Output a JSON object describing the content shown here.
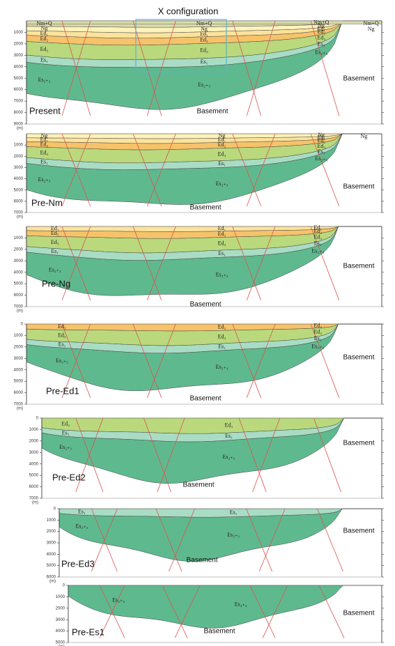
{
  "title": "X configuration",
  "panels": [
    {
      "label": "Present",
      "ylim": [
        0,
        9000
      ],
      "depth_ticks": [
        1000,
        2000,
        3000,
        4000,
        5000,
        6000,
        7000,
        8000,
        9000
      ],
      "depth_unit": "(m)",
      "label_columns": [
        [
          "Nm+Q",
          "Ng",
          "Ed₁",
          "Ed₂",
          "Ed₃",
          "Es₁",
          "Es₂₊₃"
        ],
        [
          "Nm+Q",
          "Ng",
          "Ed₁",
          "Ed₂",
          "Ed₃",
          "Es₁",
          "Es₂₊₃"
        ],
        [
          "Nm+Q",
          "Ng",
          "Ed₁",
          "Ed₂",
          "Ed₃",
          "Es₁",
          "Es₂₊₃"
        ],
        [
          "Nm+Q",
          "Ng"
        ]
      ],
      "basement": [
        "Basement",
        "Basement"
      ]
    },
    {
      "label": "Pre-Nm",
      "ylim": [
        0,
        7000
      ],
      "depth_ticks": [
        1000,
        2000,
        3000,
        4000,
        5000,
        6000,
        7000
      ],
      "depth_unit": "(m)",
      "label_columns": [
        [
          "Ng",
          "Ed₁",
          "Ed₂",
          "Ed₃",
          "Es₁",
          "Es₂₊₃"
        ],
        [
          "Ng",
          "Ed₁",
          "Ed₂",
          "Ed₃",
          "Es₁",
          "Es₂₊₃"
        ],
        [
          "Ng",
          "Ed₁",
          "Ed₂",
          "Ed₃",
          "Es₁",
          "Es₂₊₃"
        ],
        [
          "Ng"
        ]
      ],
      "basement": [
        "Basement",
        "Basement"
      ]
    },
    {
      "label": "Pre-Ng",
      "ylim": [
        0,
        7000
      ],
      "depth_ticks": [
        1000,
        2000,
        3000,
        4000,
        5000,
        6000,
        7000
      ],
      "depth_unit": "(m)",
      "label_columns": [
        [
          "Ed₁",
          "Ed₂",
          "Ed₃",
          "Es₁",
          "Es₂₊₃"
        ],
        [
          "Ed₁",
          "Ed₂",
          "Ed₃",
          "Es₁",
          "Es₂₊₃"
        ],
        [
          "Ed₁",
          "Ed₂",
          "Ed₃",
          "Es₁",
          "Es₂₊₃"
        ]
      ],
      "basement": [
        "Basement",
        "Basement"
      ]
    },
    {
      "label": "Pre-Ed1",
      "ylim": [
        0,
        7000
      ],
      "depth_ticks": [
        0,
        1000,
        2000,
        3000,
        4000,
        5000,
        6000,
        7000
      ],
      "depth_unit": "(m)",
      "label_columns": [
        [
          "Ed₂",
          "Ed₃",
          "Es₁",
          "Es₂₊₃"
        ],
        [
          "Ed₂",
          "Ed₃",
          "Es₁",
          "Es₂₊₃"
        ],
        [
          "Ed₂",
          "Ed₃",
          "Es₁",
          "Es₂₊₃"
        ]
      ],
      "basement": [
        "Basement",
        "Basement"
      ]
    },
    {
      "label": "Pre-Ed2",
      "ylim": [
        0,
        7000
      ],
      "depth_ticks": [
        0,
        1000,
        2000,
        3000,
        4000,
        5000,
        6000,
        7000
      ],
      "depth_unit": "(m)",
      "label_columns": [
        [
          "Ed₃",
          "Es₁",
          "Es₂₊₃"
        ],
        [
          "Ed₃",
          "Es₁",
          "Es₂₊₃"
        ]
      ],
      "basement": [
        "Basement",
        "Basement"
      ]
    },
    {
      "label": "Pre-Ed3",
      "ylim": [
        0,
        6000
      ],
      "depth_ticks": [
        0,
        1000,
        2000,
        3000,
        4000,
        5000,
        6000
      ],
      "depth_unit": "(m)",
      "label_columns": [
        [
          "Es₁",
          "Es₂₊₃"
        ],
        [
          "Es₁",
          "Es₂₊₃"
        ]
      ],
      "basement": [
        "Basement",
        "Basement"
      ]
    },
    {
      "label": "Pre-Es1",
      "ylim": [
        0,
        5000
      ],
      "depth_ticks": [
        0,
        1000,
        2000,
        3000,
        4000,
        5000
      ],
      "depth_unit": "(m)",
      "label_columns": [
        [
          "Es₂₊₃"
        ],
        [
          "Es₂₊₃"
        ]
      ],
      "basement": [
        "Basement",
        "Basement"
      ]
    }
  ]
}
